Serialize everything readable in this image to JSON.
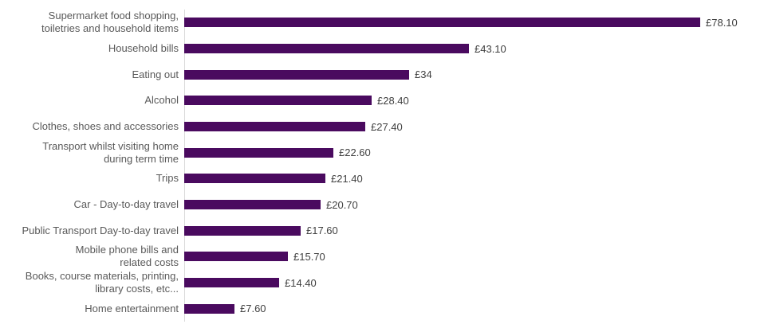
{
  "chart_data": {
    "type": "bar",
    "orientation": "horizontal",
    "title": "",
    "xlabel": "",
    "ylabel": "",
    "grid": false,
    "legend_position": "none",
    "xlim": [
      0,
      87
    ],
    "bar_color": "#4a0a5f",
    "category_label_color": "#595959",
    "value_label_color": "#404040",
    "axis_line_color": "#d9d9d9",
    "categories": [
      "Supermarket food shopping,\ntoiletries and household items",
      "Household bills",
      "Eating out",
      "Alcohol",
      "Clothes, shoes and accessories",
      "Transport whilst visiting home\nduring term time",
      "Trips",
      "Car - Day-to-day travel",
      "Public Transport Day-to-day travel",
      "Mobile phone bills and\nrelated costs",
      "Books, course materials, printing,\nlibrary costs, etc...",
      "Home entertainment"
    ],
    "values": [
      78.1,
      43.1,
      34,
      28.4,
      27.4,
      22.6,
      21.4,
      20.7,
      17.6,
      15.7,
      14.4,
      7.6
    ],
    "value_labels": [
      "£78.10",
      "£43.10",
      "£34",
      "£28.40",
      "£27.40",
      "£22.60",
      "£21.40",
      "£20.70",
      "£17.60",
      "£15.70",
      "£14.40",
      "£7.60"
    ]
  }
}
